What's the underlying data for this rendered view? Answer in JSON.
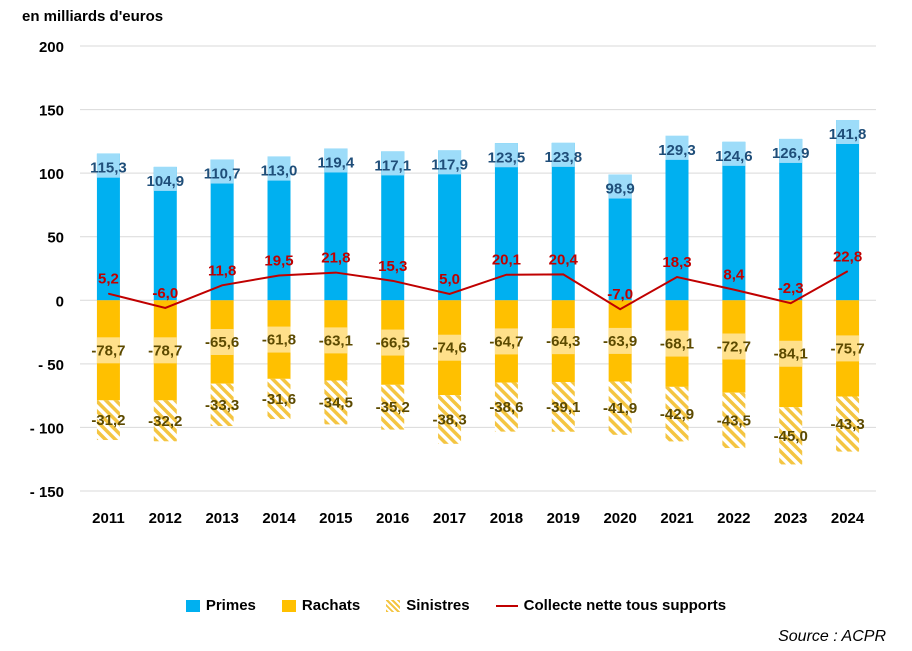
{
  "unit_label": "en milliards d'euros",
  "source": "Source : ACPR",
  "colors": {
    "primes": "#00B0F0",
    "primes_top": "#9DDCF9",
    "rachats": "#FFC000",
    "rachats_top": "#FFE08A",
    "sinistres": "#F4C542",
    "collecte": "#C00000",
    "primes_label": "#1F4E79",
    "rachats_label": "#5C4A00",
    "collecte_label": "#C00000",
    "grid": "#D9D9D9"
  },
  "legend": [
    {
      "label": "Primes",
      "kind": "primes"
    },
    {
      "label": "Rachats",
      "kind": "rachats"
    },
    {
      "label": "Sinistres",
      "kind": "sinistres"
    },
    {
      "label": "Collecte nette tous supports",
      "kind": "collecte"
    }
  ],
  "chart_data": {
    "type": "bar",
    "categories": [
      "2011",
      "2012",
      "2013",
      "2014",
      "2015",
      "2016",
      "2017",
      "2018",
      "2019",
      "2020",
      "2021",
      "2022",
      "2023",
      "2024"
    ],
    "ylim": [
      -150,
      200
    ],
    "yticks": [
      {
        "value": 200,
        "label": "200"
      },
      {
        "value": 150,
        "label": "150"
      },
      {
        "value": 100,
        "label": "100"
      },
      {
        "value": 50,
        "label": "50"
      },
      {
        "value": 0,
        "label": "0"
      },
      {
        "value": -50,
        "label": "-       50"
      },
      {
        "value": -100,
        "label": "-     100"
      },
      {
        "value": -150,
        "label": "-     150"
      }
    ],
    "grid": true,
    "legend_position": "bottom",
    "series": [
      {
        "name": "Primes",
        "values": [
          115.3,
          104.9,
          110.7,
          113.0,
          119.4,
          117.1,
          117.9,
          123.5,
          123.8,
          98.9,
          129.3,
          124.6,
          126.9,
          141.8
        ],
        "labels": [
          "115,3",
          "104,9",
          "110,7",
          "113,0",
          "119,4",
          "117,1",
          "117,9",
          "123,5",
          "123,8",
          "98,9",
          "129,3",
          "124,6",
          "126,9",
          "141,8"
        ]
      },
      {
        "name": "Rachats",
        "values": [
          -78.7,
          -78.7,
          -65.6,
          -61.8,
          -63.1,
          -66.5,
          -74.6,
          -64.7,
          -64.3,
          -63.9,
          -68.1,
          -72.7,
          -84.1,
          -75.7
        ],
        "labels": [
          "-78,7",
          "-78,7",
          "-65,6",
          "-61,8",
          "-63,1",
          "-66,5",
          "-74,6",
          "-64,7",
          "-64,3",
          "-63,9",
          "-68,1",
          "-72,7",
          "-84,1",
          "-75,7"
        ]
      },
      {
        "name": "Sinistres",
        "values": [
          -31.2,
          -32.2,
          -33.3,
          -31.6,
          -34.5,
          -35.2,
          -38.3,
          -38.6,
          -39.1,
          -41.9,
          -42.9,
          -43.5,
          -45.0,
          -43.3
        ],
        "labels": [
          "-31,2",
          "-32,2",
          "-33,3",
          "-31,6",
          "-34,5",
          "-35,2",
          "-38,3",
          "-38,6",
          "-39,1",
          "-41,9",
          "-42,9",
          "-43,5",
          "-45,0",
          "-43,3"
        ]
      },
      {
        "name": "Collecte nette tous supports",
        "values": [
          5.2,
          -6.0,
          11.8,
          19.5,
          21.8,
          15.3,
          5.0,
          20.1,
          20.4,
          -7.0,
          18.3,
          8.4,
          -2.3,
          22.8
        ],
        "labels": [
          "5,2",
          "-6,0",
          "11,8",
          "19,5",
          "21,8",
          "15,3",
          "5,0",
          "20,1",
          "20,4",
          "-7,0",
          "18,3",
          "8,4",
          "-2,3",
          "22,8"
        ]
      }
    ]
  }
}
